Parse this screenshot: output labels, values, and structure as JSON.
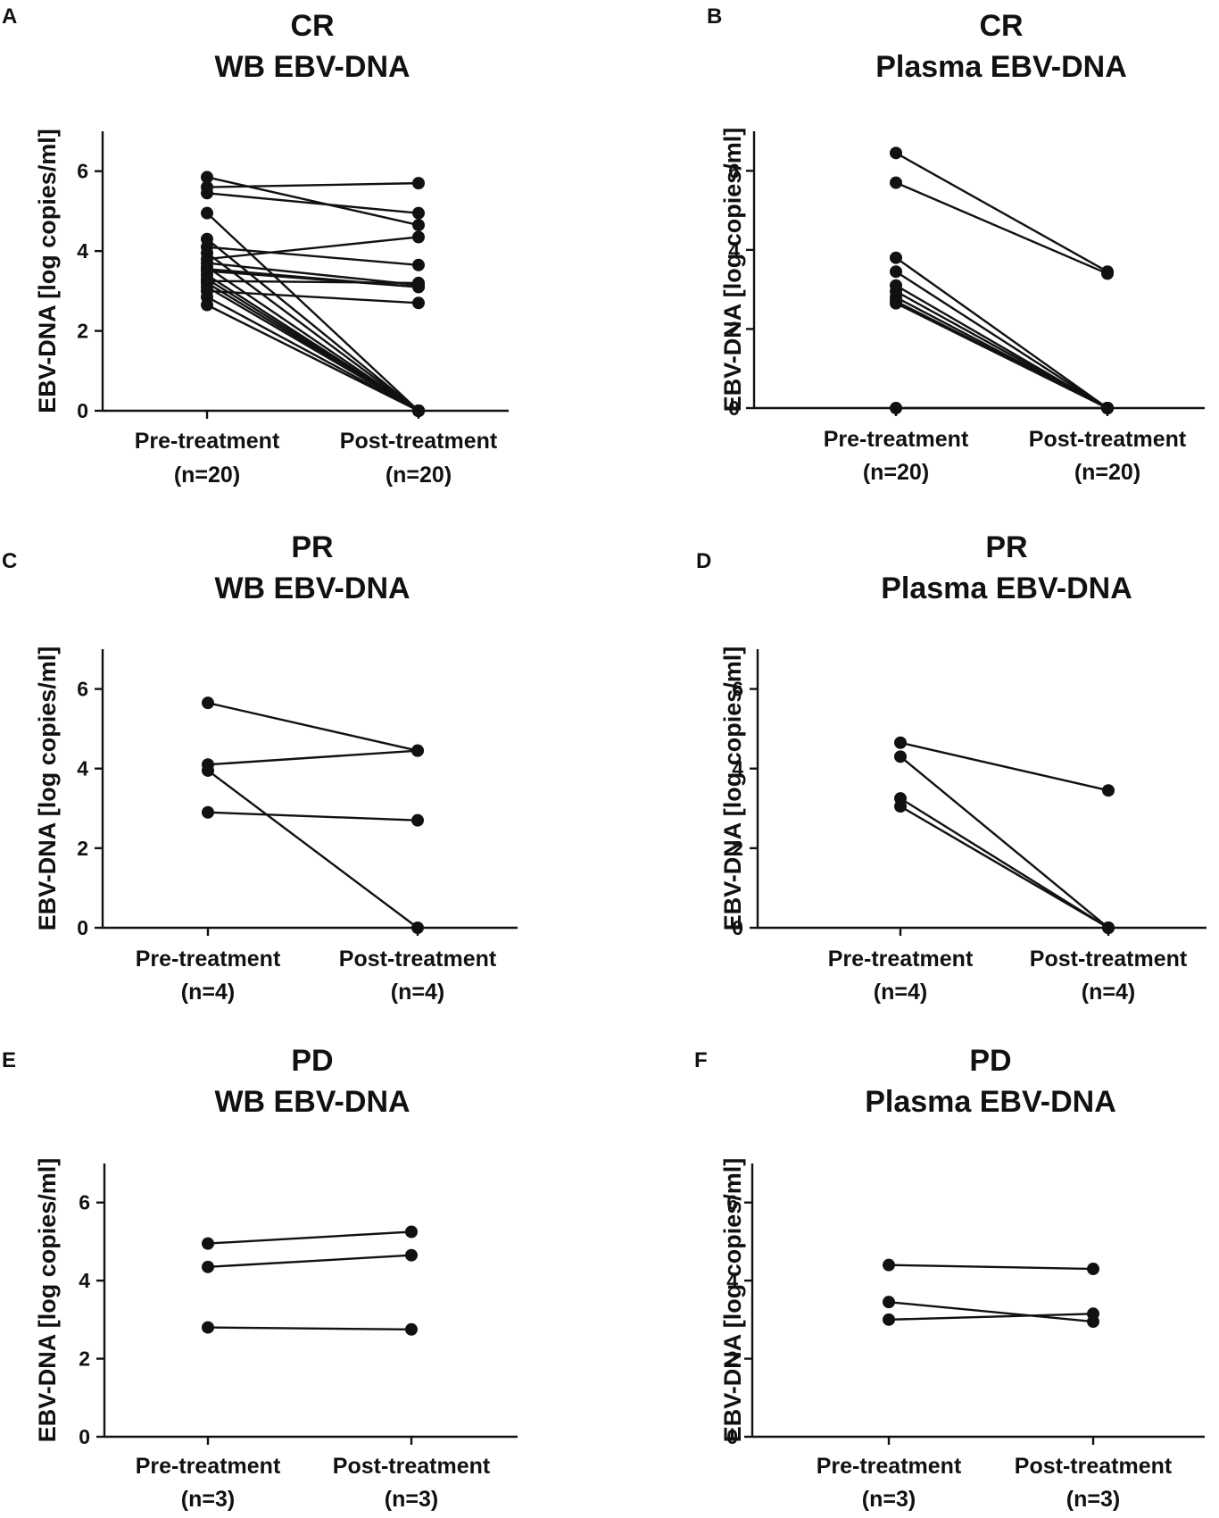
{
  "chart_data": [
    {
      "type": "line",
      "panel": "A",
      "title_lines": [
        "CR",
        "WB EBV-DNA"
      ],
      "ylabel": "EBV-DNA [log copies/ml]",
      "ylim": [
        0,
        7
      ],
      "yticks": [
        "0",
        "2",
        "4",
        "6"
      ],
      "categories": [
        "Pre-treatment",
        "Post-treatment"
      ],
      "category_n": [
        "(n=20)",
        "(n=20)"
      ],
      "pairs": [
        [
          5.85,
          4.65
        ],
        [
          5.6,
          5.7
        ],
        [
          5.45,
          4.95
        ],
        [
          4.95,
          0
        ],
        [
          4.3,
          0
        ],
        [
          4.1,
          3.65
        ],
        [
          3.95,
          0
        ],
        [
          3.8,
          4.35
        ],
        [
          3.7,
          3.15
        ],
        [
          3.6,
          0
        ],
        [
          3.5,
          3.1
        ],
        [
          3.4,
          0
        ],
        [
          3.3,
          0
        ],
        [
          3.2,
          0
        ],
        [
          3.1,
          0
        ],
        [
          3.25,
          3.2
        ],
        [
          3.0,
          2.7
        ],
        [
          2.85,
          0
        ],
        [
          2.65,
          0
        ],
        [
          3.55,
          3.1
        ]
      ]
    },
    {
      "type": "line",
      "panel": "B",
      "title_lines": [
        "CR",
        "Plasma EBV-DNA"
      ],
      "ylabel": "EBV-DNA [log copies/ml]",
      "ylim": [
        0,
        7
      ],
      "yticks": [
        "0",
        "2",
        "4",
        "6"
      ],
      "categories": [
        "Pre-treatment",
        "Post-treatment"
      ],
      "category_n": [
        "(n=20)",
        "(n=20)"
      ],
      "pairs": [
        [
          6.45,
          3.45
        ],
        [
          5.7,
          3.4
        ],
        [
          3.8,
          0
        ],
        [
          3.45,
          0
        ],
        [
          3.1,
          0
        ],
        [
          2.95,
          0
        ],
        [
          2.8,
          0
        ],
        [
          2.7,
          0
        ],
        [
          2.65,
          0
        ],
        [
          0,
          0
        ]
      ]
    },
    {
      "type": "line",
      "panel": "C",
      "title_lines": [
        "PR",
        "WB EBV-DNA"
      ],
      "ylabel": "EBV-DNA [log copies/ml]",
      "ylim": [
        0,
        7
      ],
      "yticks": [
        "0",
        "2",
        "4",
        "6"
      ],
      "categories": [
        "Pre-treatment",
        "Post-treatment"
      ],
      "category_n": [
        "(n=4)",
        "(n=4)"
      ],
      "pairs": [
        [
          5.65,
          4.45
        ],
        [
          4.1,
          4.45
        ],
        [
          3.95,
          0
        ],
        [
          2.9,
          2.7
        ]
      ]
    },
    {
      "type": "line",
      "panel": "D",
      "title_lines": [
        "PR",
        "Plasma EBV-DNA"
      ],
      "ylabel": "EBV-DNA [log copies/ml]",
      "ylim": [
        0,
        7
      ],
      "yticks": [
        "0",
        "2",
        "4",
        "6"
      ],
      "categories": [
        "Pre-treatment",
        "Post-treatment"
      ],
      "category_n": [
        "(n=4)",
        "(n=4)"
      ],
      "pairs": [
        [
          4.65,
          3.45
        ],
        [
          4.3,
          0
        ],
        [
          3.25,
          0
        ],
        [
          3.05,
          0
        ]
      ]
    },
    {
      "type": "line",
      "panel": "E",
      "title_lines": [
        "PD",
        "WB EBV-DNA"
      ],
      "ylabel": "EBV-DNA [log copies/ml]",
      "ylim": [
        0,
        7
      ],
      "yticks": [
        "0",
        "2",
        "4",
        "6"
      ],
      "categories": [
        "Pre-treatment",
        "Post-treatment"
      ],
      "category_n": [
        "(n=3)",
        "(n=3)"
      ],
      "pairs": [
        [
          4.95,
          5.25
        ],
        [
          4.35,
          4.65
        ],
        [
          2.8,
          2.75
        ]
      ]
    },
    {
      "type": "line",
      "panel": "F",
      "title_lines": [
        "PD",
        "Plasma EBV-DNA"
      ],
      "ylabel": "EBV-DNA [log copies/ml]",
      "ylim": [
        0,
        7
      ],
      "yticks": [
        "0",
        "2",
        "4",
        "6"
      ],
      "categories": [
        "Pre-treatment",
        "Post-treatment"
      ],
      "category_n": [
        "(n=3)",
        "(n=3)"
      ],
      "pairs": [
        [
          4.4,
          4.3
        ],
        [
          3.45,
          2.95
        ],
        [
          3.0,
          3.15
        ]
      ]
    }
  ]
}
